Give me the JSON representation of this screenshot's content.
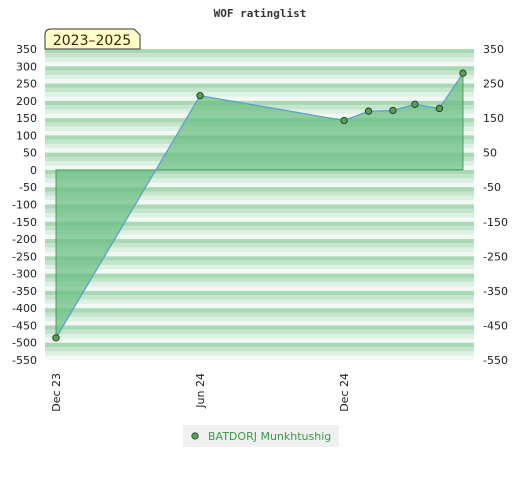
{
  "chart_data": {
    "type": "area",
    "title": "WOF ratinglist",
    "badge": "2023–2025",
    "xlabel": "",
    "ylabel": "",
    "ylim": [
      -550,
      350
    ],
    "yticks": [
      350,
      300,
      250,
      200,
      150,
      100,
      50,
      0,
      -50,
      -100,
      -150,
      -200,
      -250,
      -300,
      -350,
      -400,
      -450,
      -500,
      -550
    ],
    "yticks_right": [
      350,
      250,
      150,
      50,
      -50,
      -150,
      -250,
      -350,
      -450,
      -550
    ],
    "xlim": [
      "2023-12-01",
      "2025-05-15"
    ],
    "xticks": [
      {
        "date": "2023-12-01",
        "label": "Dec 23"
      },
      {
        "date": "2024-06-01",
        "label": "Jun 24"
      },
      {
        "date": "2024-12-01",
        "label": "Dec 24"
      }
    ],
    "grid": true,
    "legend_position": "bottom-center",
    "series": [
      {
        "name": "BATDORJ Munkhtushig",
        "color": "#5aa0d0",
        "fill": "#6cbf84",
        "points": [
          {
            "x": "2023-12-01",
            "y": -486
          },
          {
            "x": "2024-06-01",
            "y": 215
          },
          {
            "x": "2024-12-01",
            "y": 143
          },
          {
            "x": "2025-01-01",
            "y": 170
          },
          {
            "x": "2025-02-01",
            "y": 172
          },
          {
            "x": "2025-03-01",
            "y": 190
          },
          {
            "x": "2025-04-01",
            "y": 178
          },
          {
            "x": "2025-05-01",
            "y": 280
          }
        ]
      }
    ]
  }
}
